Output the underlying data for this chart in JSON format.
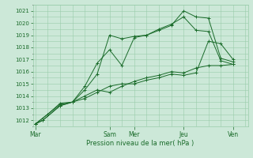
{
  "title": "",
  "xlabel": "Pression niveau de la mer( hPa )",
  "ylabel": "",
  "bg_color": "#cce8d8",
  "grid_color": "#99ccaa",
  "line_color": "#1a6b2a",
  "ylim": [
    1011.5,
    1021.5
  ],
  "yticks": [
    1012,
    1013,
    1014,
    1015,
    1016,
    1017,
    1018,
    1019,
    1020,
    1021
  ],
  "xtick_labels": [
    "Mar",
    "Sam",
    "Mer",
    "Jeu",
    "Ven"
  ],
  "xtick_positions": [
    0,
    3,
    4,
    6,
    8
  ],
  "xlim": [
    -0.1,
    8.6
  ],
  "series": [
    {
      "x": [
        0,
        0.3,
        1,
        1.5,
        2,
        2.5,
        3,
        3.5,
        4,
        4.5,
        5,
        5.5,
        6,
        6.5,
        7,
        7.5,
        8
      ],
      "y": [
        1011.7,
        1012.0,
        1013.2,
        1013.5,
        1014.5,
        1015.8,
        1019.0,
        1018.7,
        1018.9,
        1019.0,
        1019.4,
        1019.8,
        1021.0,
        1020.5,
        1020.4,
        1017.1,
        1016.8
      ]
    },
    {
      "x": [
        0,
        0.3,
        1,
        1.5,
        2,
        2.5,
        3,
        3.5,
        4,
        4.5,
        5,
        5.5,
        6,
        6.5,
        7,
        7.5,
        8
      ],
      "y": [
        1011.7,
        1012.0,
        1013.2,
        1013.5,
        1014.8,
        1016.7,
        1017.8,
        1016.5,
        1018.8,
        1019.0,
        1019.5,
        1019.9,
        1020.5,
        1019.4,
        1019.3,
        1016.9,
        1016.6
      ]
    },
    {
      "x": [
        0,
        0.5,
        1,
        1.5,
        2,
        2.5,
        3,
        3.5,
        4,
        4.5,
        5,
        5.5,
        6,
        6.5,
        7,
        7.5,
        8
      ],
      "y": [
        1011.7,
        1012.5,
        1013.4,
        1013.5,
        1014.0,
        1014.5,
        1014.3,
        1014.8,
        1015.2,
        1015.5,
        1015.7,
        1016.0,
        1015.9,
        1016.3,
        1016.5,
        1016.5,
        1016.6
      ]
    },
    {
      "x": [
        0,
        0.5,
        1,
        1.5,
        2,
        2.5,
        3,
        3.5,
        4,
        4.5,
        5,
        5.5,
        6,
        6.5,
        7,
        7.5,
        8
      ],
      "y": [
        1011.7,
        1012.5,
        1013.3,
        1013.5,
        1013.8,
        1014.3,
        1014.8,
        1015.0,
        1015.0,
        1015.3,
        1015.5,
        1015.8,
        1015.7,
        1015.9,
        1018.5,
        1018.3,
        1017.0
      ]
    }
  ]
}
